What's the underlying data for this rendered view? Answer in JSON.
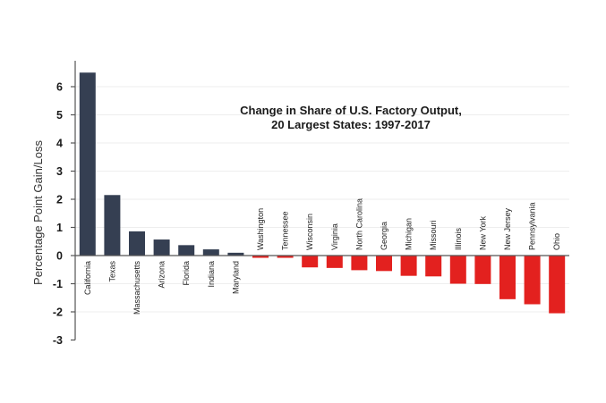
{
  "chart_data": {
    "type": "bar",
    "title": [
      "Change in Share of U.S. Factory Output,",
      "20 Largest States: 1997-2017"
    ],
    "xlabel": "",
    "ylabel": "Percentage Point Gain/Loss",
    "ylim": [
      -3,
      7
    ],
    "yticks": [
      -3,
      -2,
      -1,
      0,
      1,
      2,
      3,
      4,
      5,
      6
    ],
    "grid": true,
    "categories": [
      "California",
      "Texas",
      "Massachusetts",
      "Arizona",
      "Florida",
      "Indiana",
      "Maryland",
      "Washington",
      "Tennessee",
      "Wisconsin",
      "Virginia",
      "North Carolina",
      "Georgia",
      "Michigan",
      "Missouri",
      "Illinois",
      "New York",
      "New Jersey",
      "Pennsylvania",
      "Ohio"
    ],
    "values": [
      6.5,
      2.15,
      0.86,
      0.57,
      0.37,
      0.22,
      0.1,
      -0.08,
      -0.08,
      -0.42,
      -0.44,
      -0.52,
      -0.55,
      -0.72,
      -0.74,
      -1.0,
      -1.01,
      -1.55,
      -1.73,
      -2.05
    ],
    "colors": {
      "gain": "#353f52",
      "loss": "#e3211f"
    }
  }
}
